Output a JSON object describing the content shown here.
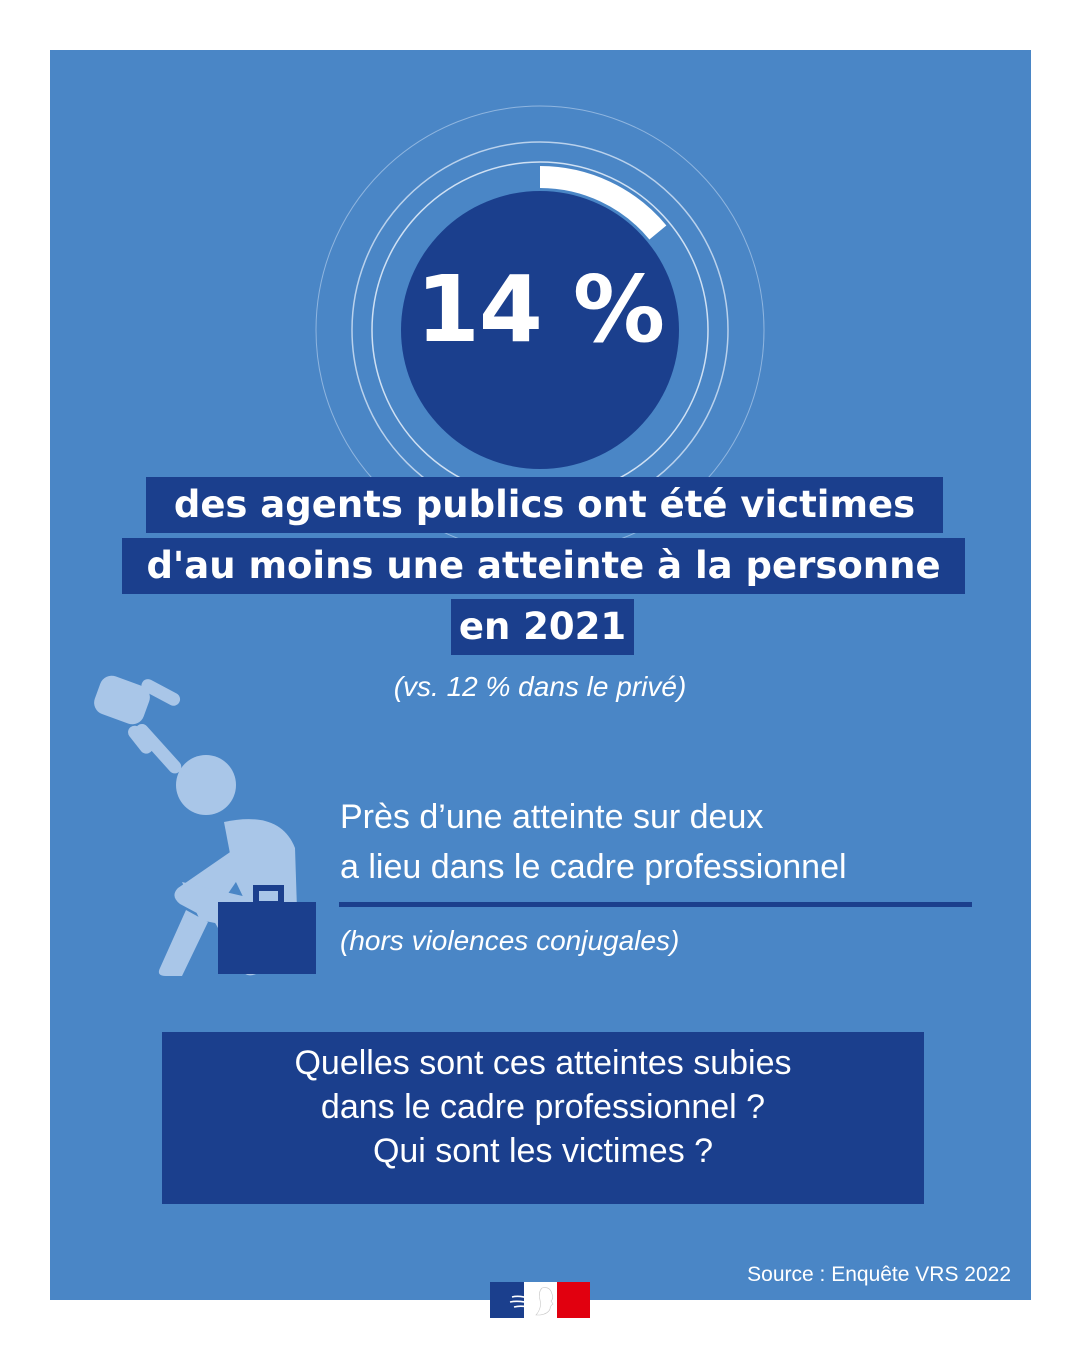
{
  "stat": {
    "value_text": "14 %",
    "fraction": 0.14
  },
  "headline": {
    "line1": "des agents publics ont été victimes",
    "line2": "d'au moins une atteinte à la personne",
    "line3": "en 2021"
  },
  "comparison": "(vs. 12 % dans le privé)",
  "professional": {
    "line1": "Près d’une atteinte sur deux",
    "line2": "a lieu dans le cadre professionnel",
    "note": "(hors violences conjugales)"
  },
  "question": {
    "line1": "Quelles sont ces atteintes subies",
    "line2": "dans le cadre professionnel ?",
    "line3": "Qui sont les victimes ?"
  },
  "source": "Source : Enquête VRS 2022",
  "icons": {
    "pointing_hand": "pointing-hand-icon",
    "seated_person": "seated-person-icon",
    "briefcase": "briefcase-icon",
    "logo": "marianne-logo"
  },
  "colors": {
    "background": "#4a86c6",
    "dark_blue": "#1b3f8d",
    "light_figure": "#a9c6e8",
    "white": "#ffffff",
    "logo_red": "#e1000f"
  }
}
